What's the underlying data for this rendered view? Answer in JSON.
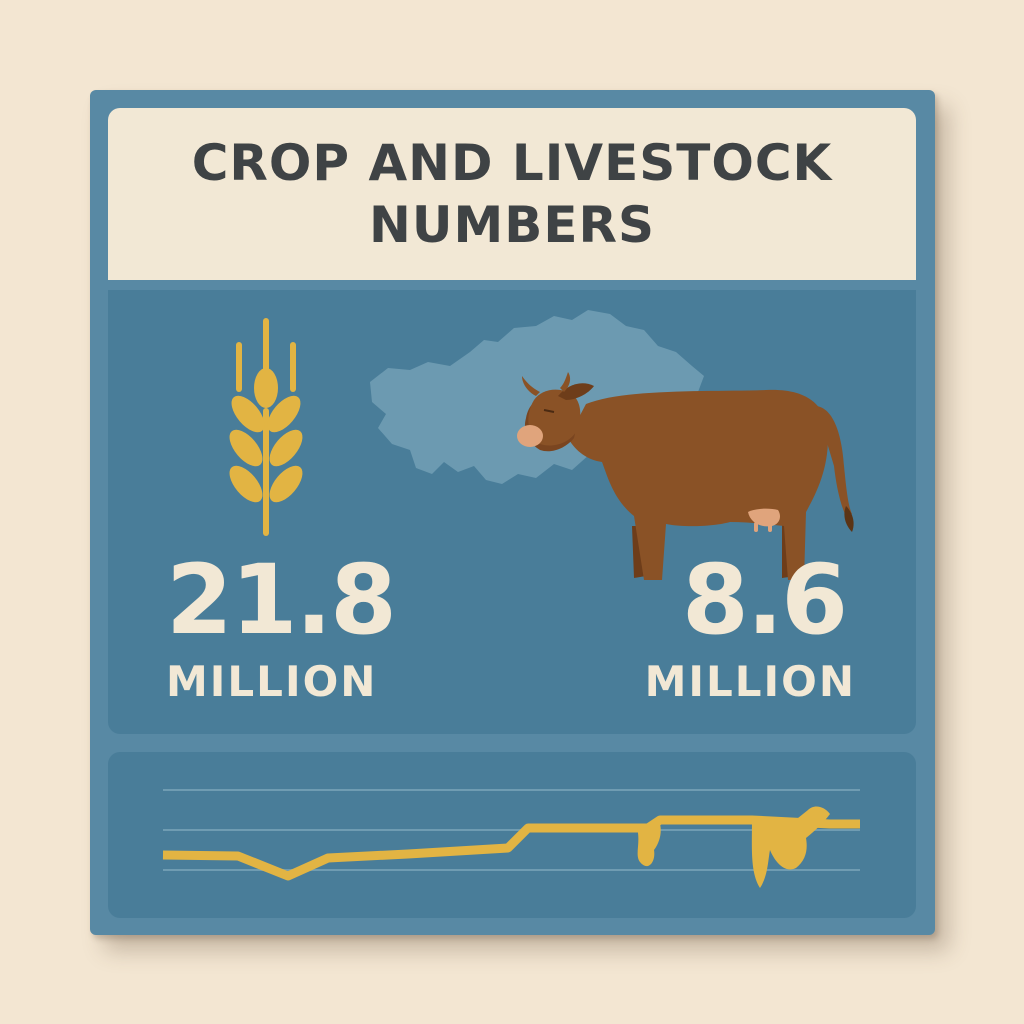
{
  "title": "CROP AND LIVESTOCK NUMBERS",
  "stats": {
    "crop": {
      "value": "21.8",
      "unit": "MILLION",
      "icon": "wheat-icon"
    },
    "livestock": {
      "value": "8.6",
      "unit": "MILLION",
      "icon": "cow-icon"
    }
  },
  "decorations": {
    "map": "country-map-silhouette",
    "trend": "trend-line"
  },
  "colors": {
    "background": "#f3e6d2",
    "board": "#5889a4",
    "panel": "#497d99",
    "title_panel": "#f2e8d5",
    "title_text": "#3f4345",
    "accent_gold": "#e2b443",
    "cow_brown": "#8a5226",
    "map": "#6f9cb2"
  }
}
